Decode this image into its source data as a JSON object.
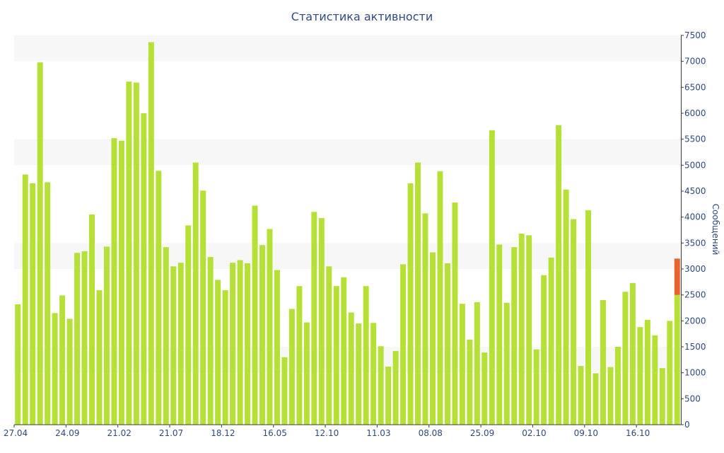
{
  "chart_data": {
    "type": "bar",
    "title": "Статистика активности",
    "ylabel": "Сообщений",
    "xlabel": "",
    "ylim": [
      0,
      7500
    ],
    "yticks": [
      0,
      500,
      1000,
      1500,
      2000,
      2500,
      3000,
      3500,
      4000,
      4500,
      5000,
      5500,
      6000,
      6500,
      7000,
      7500
    ],
    "xtick_labels": [
      {
        "index": 0,
        "label": "27.04"
      },
      {
        "index": 7,
        "label": "24.09"
      },
      {
        "index": 14,
        "label": "21.02"
      },
      {
        "index": 21,
        "label": "21.07"
      },
      {
        "index": 28,
        "label": "18.12"
      },
      {
        "index": 35,
        "label": "16.05"
      },
      {
        "index": 42,
        "label": "12.10"
      },
      {
        "index": 49,
        "label": "11.03"
      },
      {
        "index": 56,
        "label": "08.08"
      },
      {
        "index": 63,
        "label": "25.09"
      },
      {
        "index": 70,
        "label": "02.10"
      },
      {
        "index": 77,
        "label": "09.10"
      },
      {
        "index": 84,
        "label": "16.10"
      }
    ],
    "grid": "horizontal alternating bands",
    "colors": {
      "bar": "#b5e035",
      "highlight": "#e8632d",
      "band": "#f7f7f7",
      "axis": "#2e4a80"
    },
    "values": [
      2320,
      4820,
      4650,
      6980,
      4670,
      2150,
      2490,
      2040,
      3310,
      3340,
      4050,
      2590,
      3430,
      5520,
      5470,
      6610,
      6590,
      6000,
      7370,
      4890,
      3420,
      3050,
      3120,
      3840,
      5050,
      4510,
      3230,
      2790,
      2590,
      3120,
      3170,
      3110,
      4220,
      3460,
      3770,
      2980,
      1300,
      2230,
      2670,
      1970,
      4100,
      3980,
      3050,
      2670,
      2840,
      2160,
      1950,
      2670,
      1960,
      1510,
      1120,
      1420,
      3090,
      4650,
      5050,
      4070,
      3320,
      4880,
      3110,
      4280,
      2330,
      1640,
      2360,
      1390,
      5670,
      3470,
      2350,
      3420,
      3680,
      3650,
      1450,
      2880,
      3220,
      5770,
      4530,
      3960,
      1130,
      4130,
      990,
      2400,
      1110,
      1500,
      2560,
      2730,
      1880,
      2020,
      1720,
      1090,
      2000,
      2500
    ],
    "last_bar_extra": 700
  }
}
